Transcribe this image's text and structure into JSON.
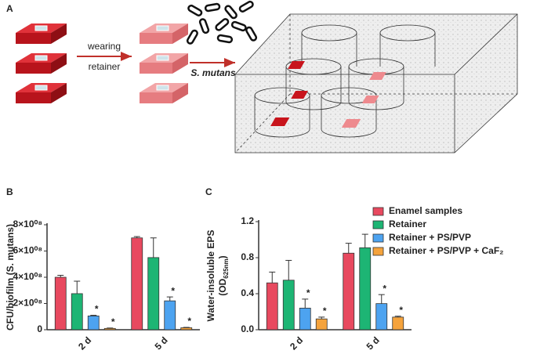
{
  "diagram": {
    "label": "A",
    "arrow1_top": "wearing",
    "arrow1_bottom": "retainer",
    "arrow2": "S. mutans"
  },
  "chart_data": [
    {
      "type": "bar",
      "panel": "B",
      "ylabel": "CFU/biofilm (S. mutans)",
      "categories": [
        "2 d",
        "5 d"
      ],
      "ylim": [
        0,
        800000000
      ],
      "yticks": [
        0,
        {
          "value": 200000000,
          "label": "2×10⁰⁸"
        },
        {
          "value": 400000000,
          "label": "4×10⁰⁸"
        },
        {
          "value": 600000000,
          "label": "6×10⁰⁸"
        },
        {
          "value": 800000000,
          "label": "8×10⁰⁸"
        }
      ],
      "series": [
        {
          "color": "#e8495f",
          "values": [
            400000000,
            700000000
          ],
          "errors": [
            15000000,
            10000000
          ]
        },
        {
          "color": "#1db574",
          "values": [
            275000000,
            550000000
          ],
          "errors": [
            95000000,
            150000000
          ]
        },
        {
          "color": "#4da3f0",
          "values": [
            105000000,
            220000000
          ],
          "errors": [
            5000000,
            30000000
          ]
        },
        {
          "color": "#f5a33c",
          "values": [
            10000000,
            15000000
          ],
          "errors": [
            3000000,
            3000000
          ]
        }
      ],
      "annotations": [
        "*",
        "*",
        "*",
        "*"
      ]
    },
    {
      "type": "bar",
      "panel": "C",
      "ylabel": "Water-insoluble EPS",
      "ylabel_unit": {
        "pre": "(OD",
        "sub": "625nm",
        "post": ")"
      },
      "categories": [
        "2 d",
        "5 d"
      ],
      "ylim": [
        0,
        1.2
      ],
      "yticks": [
        {
          "value": 0,
          "label": "0.0"
        },
        0.4,
        0.8,
        1.2
      ],
      "series": [
        {
          "name": "Enamel samples",
          "color": "#e8495f",
          "values": [
            0.52,
            0.85
          ],
          "errors": [
            0.12,
            0.11
          ]
        },
        {
          "name": "Retainer",
          "color": "#1db574",
          "values": [
            0.55,
            0.91
          ],
          "errors": [
            0.22,
            0.15
          ]
        },
        {
          "name": "Retainer + PS/PVP",
          "color": "#4da3f0",
          "values": [
            0.24,
            0.29
          ],
          "errors": [
            0.1,
            0.1
          ]
        },
        {
          "name": "Retainer + PS/PVP + CaF₂",
          "color": "#f5a33c",
          "values": [
            0.12,
            0.14
          ],
          "errors": [
            0.02,
            0.01
          ]
        }
      ],
      "annotations": [
        "*",
        "*",
        "*",
        "*"
      ]
    }
  ]
}
